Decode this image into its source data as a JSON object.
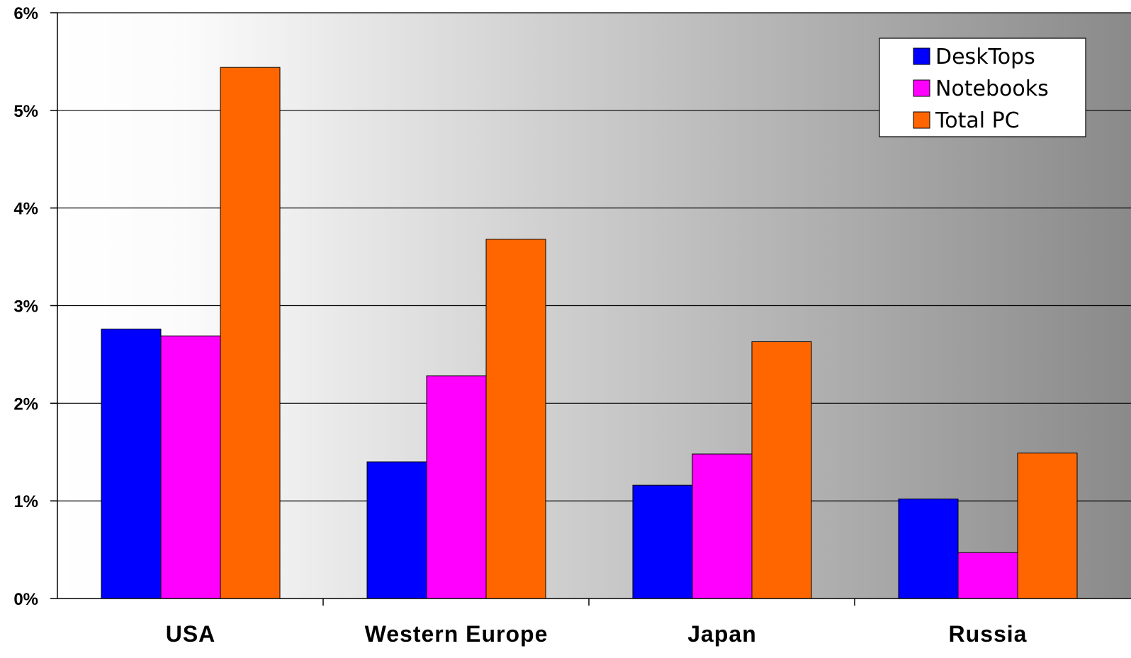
{
  "chart_data": {
    "type": "bar",
    "categories": [
      "USA",
      "Western Europe",
      "Japan",
      "Russia"
    ],
    "series": [
      {
        "name": "DeskTops",
        "color": "#0000ff",
        "values": [
          2.76,
          1.4,
          1.16,
          1.02
        ]
      },
      {
        "name": "Notebooks",
        "color": "#ff00ff",
        "values": [
          2.69,
          2.28,
          1.48,
          0.47
        ]
      },
      {
        "name": "Total PC",
        "color": "#ff6600",
        "values": [
          5.44,
          3.68,
          2.63,
          1.49
        ]
      }
    ],
    "yticks": [
      "0%",
      "1%",
      "2%",
      "3%",
      "4%",
      "5%",
      "6%"
    ],
    "ylim": [
      0,
      6
    ],
    "grid": true,
    "legend_position": "top-right",
    "background": "horizontal gradient from white to dark gray"
  }
}
